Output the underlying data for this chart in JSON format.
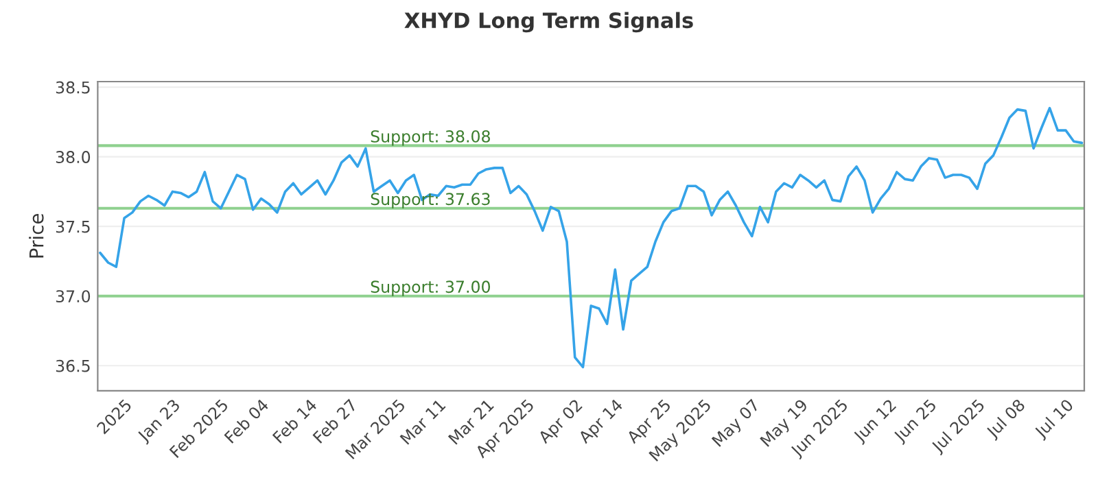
{
  "chart_data": {
    "type": "line",
    "title": "XHYD Long Term Signals",
    "ylabel": "Price",
    "categories": [
      null,
      null,
      null,
      "2025",
      null,
      null,
      null,
      null,
      null,
      "Jan 23",
      null,
      null,
      null,
      null,
      null,
      "Feb 2025",
      null,
      null,
      null,
      null,
      "Feb 04",
      null,
      null,
      null,
      null,
      null,
      "Feb 14",
      null,
      null,
      null,
      null,
      "Feb 27",
      null,
      null,
      null,
      null,
      null,
      "Mar 2025",
      null,
      null,
      null,
      null,
      "Mar 11",
      null,
      null,
      null,
      null,
      null,
      "Mar 21",
      null,
      null,
      null,
      null,
      "Apr 2025",
      null,
      null,
      null,
      null,
      null,
      "Apr 02",
      null,
      null,
      null,
      null,
      "Apr 14",
      null,
      null,
      null,
      null,
      null,
      "Apr 25",
      null,
      null,
      null,
      null,
      "May 2025",
      null,
      null,
      null,
      null,
      null,
      "May 07",
      null,
      null,
      null,
      null,
      null,
      "May 19",
      null,
      null,
      null,
      null,
      "Jun 2025",
      null,
      null,
      null,
      null,
      null,
      "Jun 12",
      null,
      null,
      null,
      null,
      "Jun 25",
      null,
      null,
      null,
      null,
      null,
      "Jul 2025",
      null,
      null,
      null,
      null,
      "Jul 08",
      null,
      null,
      null,
      null,
      null,
      "Jul 10",
      null,
      null
    ],
    "series": [
      {
        "color": "#35a3e8",
        "values": [
          37.31,
          37.24,
          37.21,
          37.56,
          37.6,
          37.68,
          37.72,
          37.69,
          37.65,
          37.75,
          37.74,
          37.71,
          37.75,
          37.89,
          37.68,
          37.63,
          37.75,
          37.87,
          37.84,
          37.62,
          37.7,
          37.66,
          37.6,
          37.75,
          37.81,
          37.73,
          37.78,
          37.83,
          37.73,
          37.83,
          37.96,
          38.01,
          37.93,
          38.06,
          37.75,
          37.79,
          37.83,
          37.74,
          37.83,
          37.87,
          37.69,
          37.73,
          37.72,
          37.79,
          37.78,
          37.8,
          37.8,
          37.88,
          37.91,
          37.92,
          37.92,
          37.74,
          37.79,
          37.73,
          37.61,
          37.47,
          37.64,
          37.61,
          37.39,
          36.56,
          36.49,
          36.93,
          36.91,
          36.8,
          37.19,
          36.76,
          37.11,
          37.16,
          37.21,
          37.39,
          37.53,
          37.61,
          37.63,
          37.79,
          37.79,
          37.75,
          37.58,
          37.69,
          37.75,
          37.65,
          37.53,
          37.43,
          37.64,
          37.53,
          37.75,
          37.81,
          37.78,
          37.87,
          37.83,
          37.78,
          37.83,
          37.69,
          37.68,
          37.86,
          37.93,
          37.83,
          37.6,
          37.7,
          37.77,
          37.89,
          37.84,
          37.83,
          37.93,
          37.99,
          37.98,
          37.85,
          37.87,
          37.87,
          37.85,
          37.77,
          37.95,
          38.01,
          38.14,
          38.28,
          38.34,
          38.33,
          38.06,
          38.21,
          38.35,
          38.19,
          38.19,
          38.11,
          38.1
        ]
      }
    ],
    "ylim": [
      36.32,
      38.54
    ],
    "yticks": [
      36.5,
      {
        "value": 37,
        "label": "37.0"
      },
      37.5,
      {
        "value": 38,
        "label": "38.0"
      },
      38.5
    ],
    "ref_lines": [
      {
        "axis": "y",
        "value": 38.08,
        "label": "Support: 38.08",
        "color": "#8fd18f"
      },
      {
        "axis": "y",
        "value": 37.63,
        "label": "Support: 37.63",
        "color": "#8fd18f"
      },
      {
        "axis": "y",
        "value": 37.0,
        "label": "Support: 37.00",
        "color": "#8fd18f"
      }
    ],
    "grid": "y",
    "legend": false,
    "line_style": "solid",
    "marker": "none"
  }
}
